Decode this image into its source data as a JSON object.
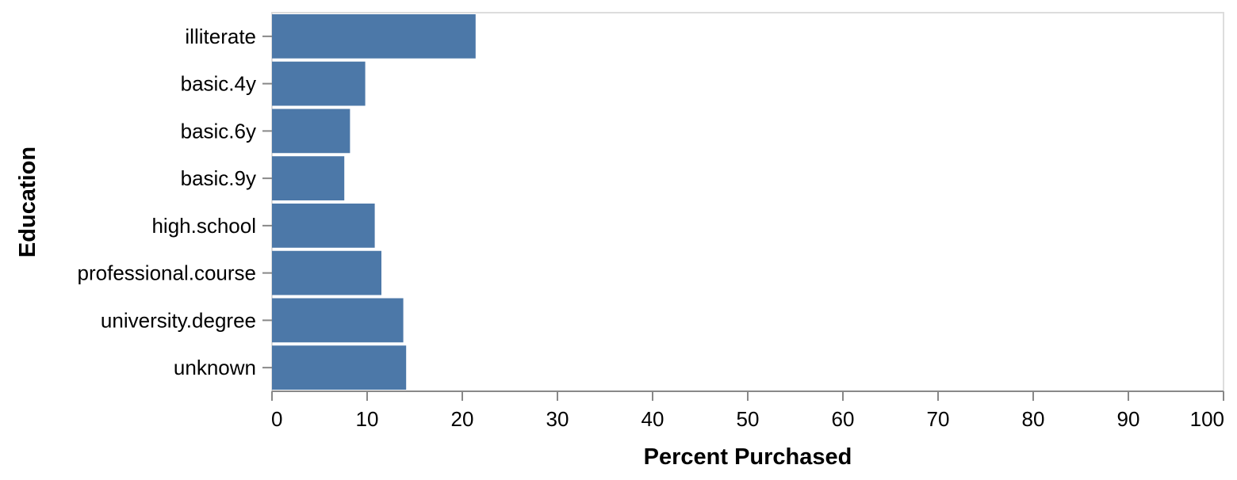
{
  "chart_data": {
    "type": "bar",
    "orientation": "horizontal",
    "categories": [
      "illiterate",
      "basic.4y",
      "basic.6y",
      "basic.9y",
      "high.school",
      "professional.course",
      "university.degree",
      "unknown"
    ],
    "values": [
      21.4,
      9.8,
      8.2,
      7.6,
      10.8,
      11.5,
      13.8,
      14.1
    ],
    "xlabel": "Percent Purchased",
    "ylabel": "Education",
    "xlim": [
      0,
      100
    ],
    "xticks": [
      0,
      10,
      20,
      30,
      40,
      50,
      60,
      70,
      80,
      90,
      100
    ],
    "grid": false,
    "bar_color": "#4c78a8",
    "axis_color": "#888888",
    "frame_color": "#dddddd"
  }
}
